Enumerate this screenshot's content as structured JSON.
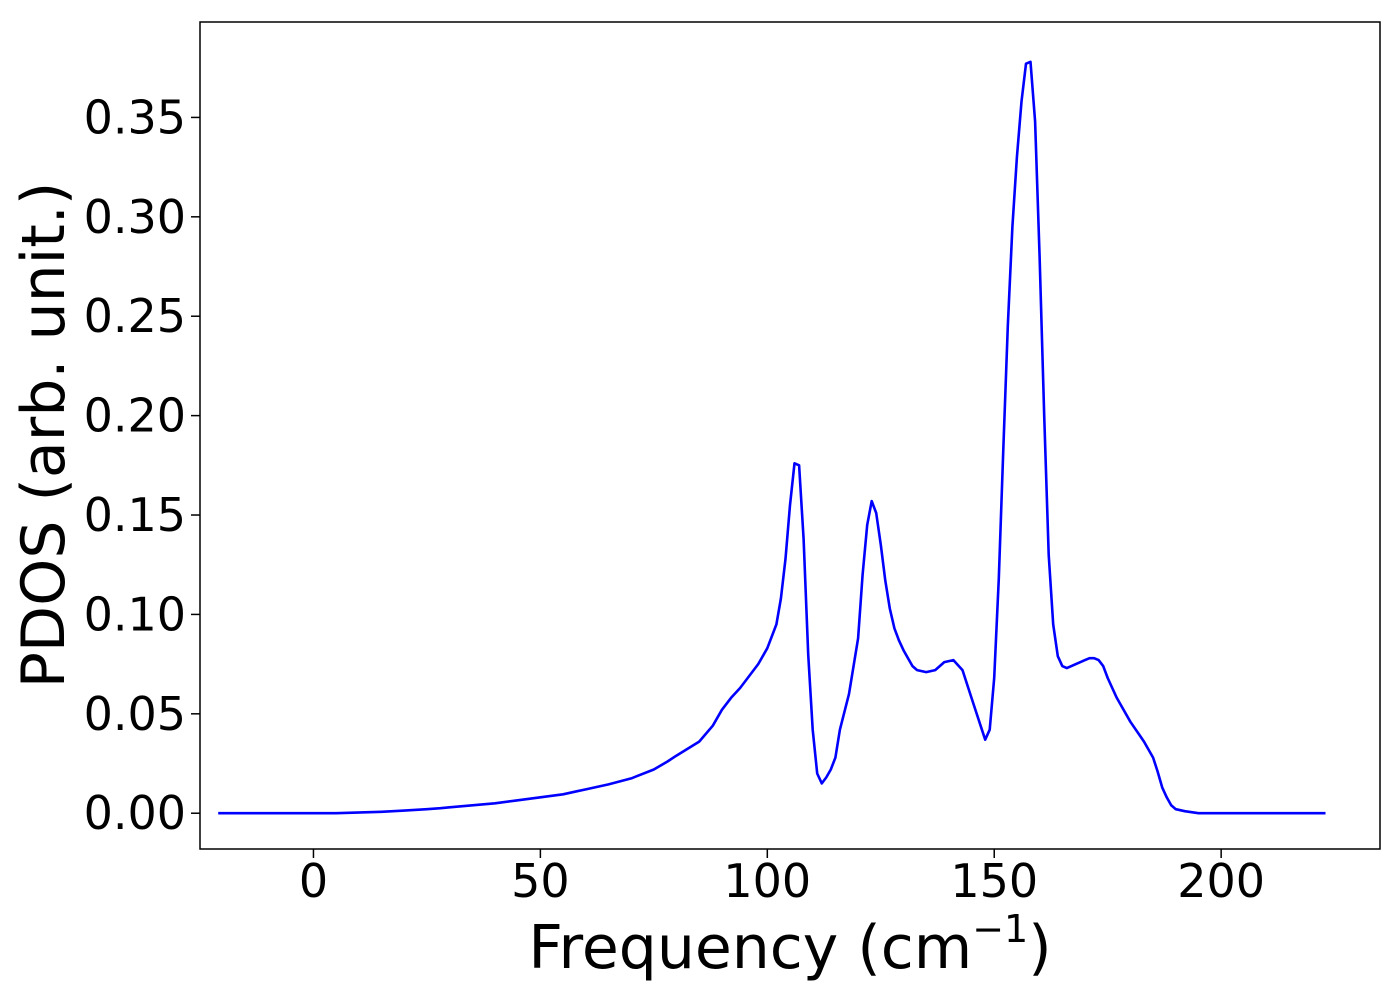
{
  "chart_data": {
    "type": "line",
    "xlabel": "Frequency (cm",
    "xlabel_sup": "−1",
    "xlabel_close": ")",
    "ylabel": "PDOS (arb. unit.)",
    "xlim": [
      -25,
      235
    ],
    "ylim": [
      -0.018,
      0.398
    ],
    "xticks": [
      0,
      50,
      100,
      150,
      200
    ],
    "xtick_labels": [
      "0",
      "50",
      "100",
      "150",
      "200"
    ],
    "yticks": [
      0.0,
      0.05,
      0.1,
      0.15,
      0.2,
      0.25,
      0.3,
      0.35
    ],
    "ytick_labels": [
      "0.00",
      "0.05",
      "0.10",
      "0.15",
      "0.20",
      "0.25",
      "0.30",
      "0.35"
    ],
    "grid": false,
    "series": [
      {
        "color": "#0000ff",
        "x": [
          -21,
          -10,
          0,
          5,
          15,
          20,
          25,
          28,
          30,
          35,
          40,
          45,
          50,
          55,
          58,
          60,
          65,
          70,
          75,
          78,
          80,
          85,
          88,
          90,
          92,
          94,
          96,
          98,
          100,
          102,
          103,
          104,
          105,
          106,
          107,
          108,
          109,
          110,
          111,
          112,
          113,
          114,
          115,
          116,
          118,
          120,
          121,
          122,
          123,
          124,
          125,
          126,
          127,
          128,
          129,
          130,
          131,
          132,
          133,
          135,
          137,
          139,
          141,
          143,
          145,
          147,
          148,
          149,
          150,
          151,
          152,
          153,
          154,
          155,
          156,
          157,
          158,
          159,
          160,
          161,
          162,
          163,
          164,
          165,
          166,
          167,
          168,
          169,
          170,
          171,
          172,
          173,
          174,
          175,
          177,
          180,
          183,
          185,
          186,
          187,
          188,
          189,
          190,
          192,
          195,
          198,
          200,
          202,
          203,
          204,
          205,
          206,
          208,
          210,
          215,
          223
        ],
        "y": [
          0.0,
          0.0,
          0.0,
          0.0,
          0.0007,
          0.0013,
          0.002,
          0.0025,
          0.003,
          0.004,
          0.005,
          0.0065,
          0.008,
          0.0095,
          0.011,
          0.012,
          0.0145,
          0.0175,
          0.022,
          0.026,
          0.029,
          0.036,
          0.044,
          0.052,
          0.058,
          0.063,
          0.069,
          0.075,
          0.083,
          0.095,
          0.108,
          0.128,
          0.155,
          0.176,
          0.175,
          0.138,
          0.08,
          0.042,
          0.02,
          0.015,
          0.018,
          0.022,
          0.028,
          0.042,
          0.06,
          0.088,
          0.12,
          0.145,
          0.157,
          0.151,
          0.135,
          0.117,
          0.103,
          0.093,
          0.087,
          0.082,
          0.078,
          0.074,
          0.072,
          0.071,
          0.072,
          0.076,
          0.077,
          0.072,
          0.058,
          0.044,
          0.037,
          0.042,
          0.068,
          0.118,
          0.183,
          0.245,
          0.295,
          0.33,
          0.358,
          0.377,
          0.378,
          0.348,
          0.28,
          0.2,
          0.13,
          0.095,
          0.079,
          0.074,
          0.073,
          0.074,
          0.075,
          0.076,
          0.077,
          0.078,
          0.078,
          0.077,
          0.074,
          0.068,
          0.058,
          0.046,
          0.036,
          0.028,
          0.021,
          0.013,
          0.008,
          0.004,
          0.002,
          0.001,
          0.0,
          0.0,
          0.0,
          0.0,
          0.0,
          0.0,
          0.0,
          0.0,
          0.0,
          0.0,
          0.0,
          0.0
        ]
      }
    ]
  }
}
